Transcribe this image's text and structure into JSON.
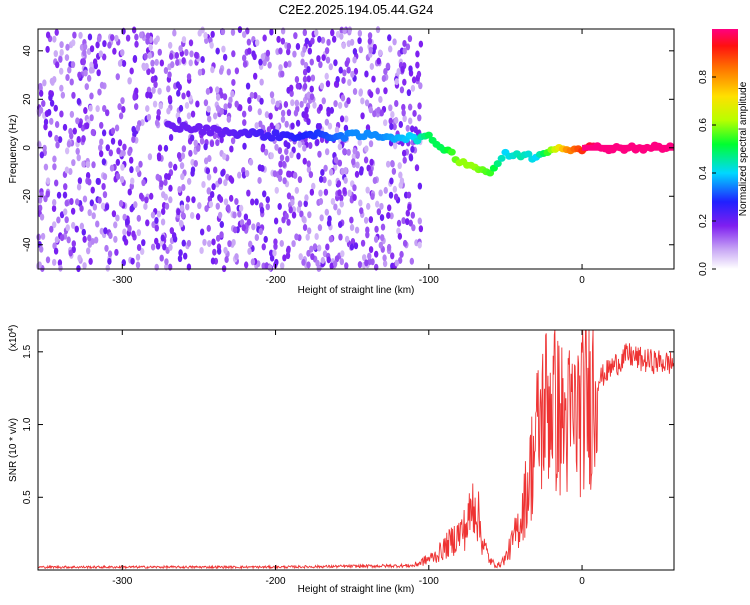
{
  "figure": {
    "title": "C2E2.2025.194.05.44.G24"
  },
  "colors": {
    "background": "#ffffff",
    "snr_line": "#ee3333",
    "weak_signal": "#8a3af0"
  },
  "chart_data": [
    {
      "type": "heatmap",
      "title": "C2E2.2025.194.05.44.G24",
      "xlabel": "Height of straight line (km)",
      "ylabel": "Frequency (Hz)",
      "xlim": [
        -355,
        60
      ],
      "ylim": [
        -50,
        49
      ],
      "xticks": [
        -300,
        -200,
        -100,
        0
      ],
      "xtick_labels": [
        "-300",
        "-200",
        "-100",
        "0"
      ],
      "yticks": [
        -40,
        -20,
        0,
        20,
        40
      ],
      "ytick_labels": [
        "-40",
        "-20",
        "0",
        "20",
        "40"
      ],
      "colorbar": {
        "label": "Normalized spectral amplitude",
        "range": [
          0,
          1
        ],
        "ticks": [
          0.0,
          0.2,
          0.4,
          0.6,
          0.8
        ],
        "tick_labels": [
          "0.0",
          "0.2",
          "0.4",
          "0.6",
          "0.8"
        ],
        "colormap": "rainbow"
      },
      "noise_region_x": [
        -355,
        -105
      ],
      "signal_trace": [
        {
          "x": -270,
          "y": 9,
          "amplitude": 0.2
        },
        {
          "x": -240,
          "y": 7,
          "amplitude": 0.2
        },
        {
          "x": -200,
          "y": 5,
          "amplitude": 0.25
        },
        {
          "x": -170,
          "y": 5,
          "amplitude": 0.3
        },
        {
          "x": -150,
          "y": 5,
          "amplitude": 0.35
        },
        {
          "x": -130,
          "y": 5,
          "amplitude": 0.35
        },
        {
          "x": -110,
          "y": 4,
          "amplitude": 0.4
        },
        {
          "x": -100,
          "y": 4,
          "amplitude": 0.5
        },
        {
          "x": -90,
          "y": 0,
          "amplitude": 0.5
        },
        {
          "x": -80,
          "y": -5,
          "amplitude": 0.6
        },
        {
          "x": -70,
          "y": -8,
          "amplitude": 0.6
        },
        {
          "x": -60,
          "y": -10,
          "amplitude": 0.55
        },
        {
          "x": -50,
          "y": -3,
          "amplitude": 0.4
        },
        {
          "x": -40,
          "y": -3,
          "amplitude": 0.45
        },
        {
          "x": -30,
          "y": -4,
          "amplitude": 0.4
        },
        {
          "x": -20,
          "y": 0,
          "amplitude": 0.6
        },
        {
          "x": -10,
          "y": 0,
          "amplitude": 0.8
        },
        {
          "x": 0,
          "y": 0,
          "amplitude": 0.9
        },
        {
          "x": 10,
          "y": 0,
          "amplitude": 1.0
        },
        {
          "x": 60,
          "y": 0,
          "amplitude": 1.0
        }
      ]
    },
    {
      "type": "line",
      "xlabel": "Height of straight line (km)",
      "ylabel": "SNR (10 * v/v)",
      "y_multiplier": "(x10",
      "y_multiplier_exp": "4",
      "y_multiplier_close": ")",
      "xlim": [
        -355,
        60
      ],
      "ylim": [
        0,
        16500
      ],
      "xticks": [
        -300,
        -200,
        -100,
        0
      ],
      "xtick_labels": [
        "-300",
        "-200",
        "-100",
        "0"
      ],
      "yticks": [
        5000,
        10000,
        15000
      ],
      "ytick_labels": [
        "0.5",
        "1.0",
        "1.5"
      ],
      "series": [
        {
          "x": [
            -355,
            -200,
            -110,
            -95,
            -85,
            -75,
            -70,
            -65,
            -60,
            -55,
            -50,
            -45,
            -40,
            -35,
            -30,
            -25,
            -20,
            -15,
            -10,
            -5,
            0,
            5,
            10,
            20,
            30,
            40,
            50,
            60
          ],
          "values": [
            200,
            200,
            300,
            1000,
            2000,
            3000,
            5000,
            2000,
            600,
            300,
            800,
            2000,
            3500,
            6000,
            9000,
            11000,
            12000,
            10500,
            10000,
            10500,
            11000,
            12000,
            13000,
            14000,
            14800,
            14400,
            14300,
            14200
          ]
        }
      ]
    }
  ]
}
